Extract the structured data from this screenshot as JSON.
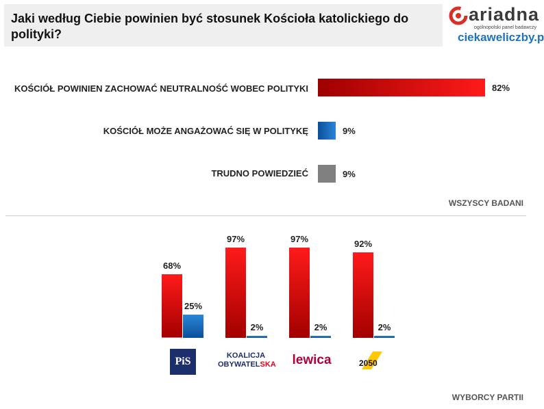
{
  "title": "Jaki według Ciebie powinien być stosunek Kościoła katolickiego do polityki?",
  "logo": {
    "name": "ariadna",
    "tagline": "ogólnopolski panel badawczy",
    "url": "ciekaweliczby.pl"
  },
  "colors": {
    "red": "#e8001c",
    "blue": "#1f6fc0",
    "gray": "#808080"
  },
  "chart_data": [
    {
      "type": "bar",
      "orientation": "horizontal",
      "categories": [
        "KOŚCIÓŁ POWINIEN ZACHOWAĆ NEUTRALNOŚĆ WOBEC POLITYKI",
        "KOŚCIÓŁ MOŻE ANGAŻOWAĆ SIĘ W POLITYKĘ",
        "TRUDNO POWIEDZIEĆ"
      ],
      "values": [
        82,
        9,
        9
      ],
      "value_labels": [
        "82%",
        "9%",
        "9%"
      ],
      "bar_colors": [
        "red",
        "blue",
        "gray"
      ],
      "footnote": "WSZYSCY BADANI"
    },
    {
      "type": "bar",
      "orientation": "vertical",
      "categories": [
        "PiS",
        "KOALICJA OBYWATELSKA",
        "Lewica",
        "2050"
      ],
      "series": [
        {
          "values": [
            68,
            97,
            97,
            92
          ],
          "labels": [
            "68%",
            "97%",
            "97%",
            "92%"
          ],
          "color": "red"
        },
        {
          "values": [
            25,
            2,
            2,
            2
          ],
          "labels": [
            "25%",
            "2%",
            "2%",
            "2%"
          ],
          "color": "blue"
        }
      ],
      "footnote": "WYBORCY PARTII"
    }
  ],
  "parties": {
    "pis": "PiS",
    "ko_line1": "KOALICJA",
    "ko_line2a": "OBYWATEL",
    "ko_line2b": "SKA",
    "lewica": "lewica",
    "pl2050": "2050"
  }
}
